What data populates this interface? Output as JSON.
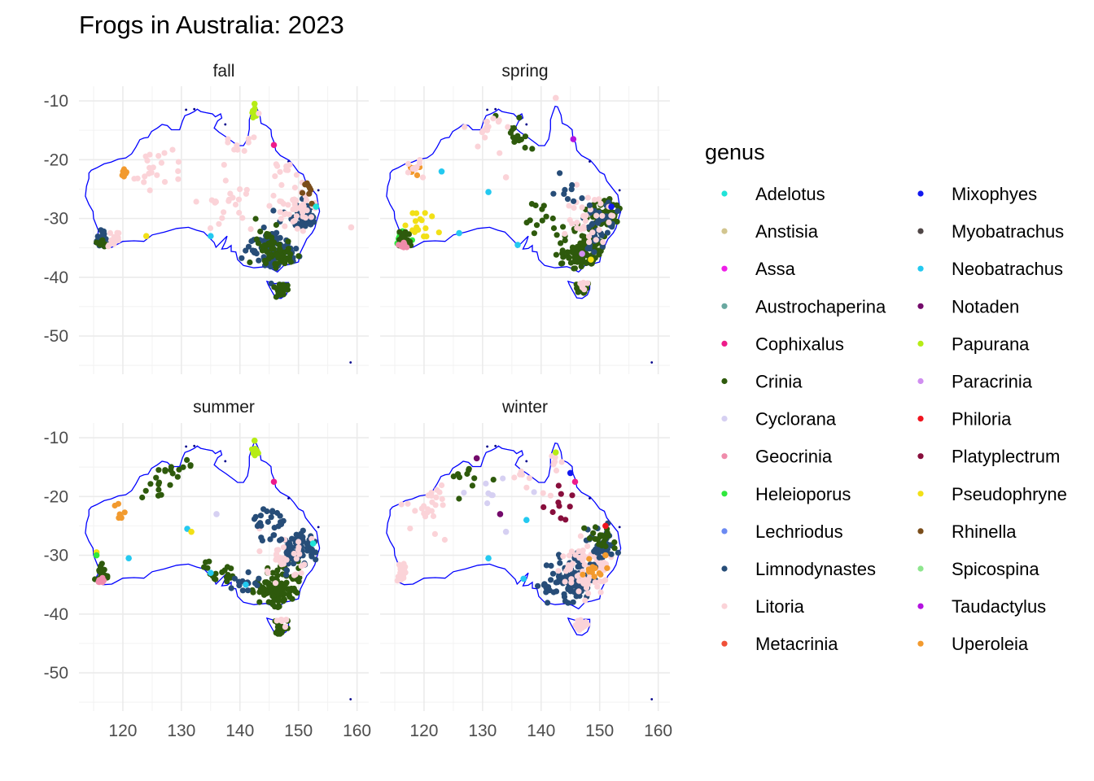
{
  "chart_data": {
    "type": "scatter",
    "title": "Frogs in Australia: 2023",
    "xlabel": "",
    "ylabel": "",
    "xlim": [
      112.5,
      162
    ],
    "ylim": [
      -56.5,
      -7.5
    ],
    "x_ticks": [
      120,
      130,
      140,
      150,
      160
    ],
    "y_ticks": [
      -10,
      -20,
      -30,
      -40,
      -50
    ],
    "grid": true,
    "legend_title": "genus",
    "legend_position": "right",
    "facets": [
      "fall",
      "spring",
      "summer",
      "winter"
    ],
    "genera": [
      {
        "name": "Adelotus",
        "color": "#1fe3d8"
      },
      {
        "name": "Anstisia",
        "color": "#d2c58f"
      },
      {
        "name": "Assa",
        "color": "#ee1ee8"
      },
      {
        "name": "Austrochaperina",
        "color": "#69a8a0"
      },
      {
        "name": "Cophixalus",
        "color": "#ee1b8a"
      },
      {
        "name": "Crinia",
        "color": "#2e5a0c"
      },
      {
        "name": "Cyclorana",
        "color": "#d6d0f2"
      },
      {
        "name": "Geocrinia",
        "color": "#ef8cab"
      },
      {
        "name": "Heleioporus",
        "color": "#2fe83c"
      },
      {
        "name": "Lechriodus",
        "color": "#6b8af2"
      },
      {
        "name": "Limnodynastes",
        "color": "#274d78"
      },
      {
        "name": "Litoria",
        "color": "#fbd3d8"
      },
      {
        "name": "Metacrinia",
        "color": "#f05038"
      },
      {
        "name": "Mixophyes",
        "color": "#1218f0"
      },
      {
        "name": "Myobatrachus",
        "color": "#4f4646"
      },
      {
        "name": "Neobatrachus",
        "color": "#23c9f0"
      },
      {
        "name": "Notaden",
        "color": "#740a6b"
      },
      {
        "name": "Papurana",
        "color": "#b6ec15"
      },
      {
        "name": "Paracrinia",
        "color": "#d08ef0"
      },
      {
        "name": "Philoria",
        "color": "#f0141e"
      },
      {
        "name": "Platyplectrum",
        "color": "#880e3c"
      },
      {
        "name": "Pseudophryne",
        "color": "#f2e016"
      },
      {
        "name": "Rhinella",
        "color": "#7a4d1a"
      },
      {
        "name": "Spicospina",
        "color": "#8ee68e"
      },
      {
        "name": "Taudactylus",
        "color": "#b412e0"
      },
      {
        "name": "Uperoleia",
        "color": "#f29a2e"
      }
    ],
    "coastline_color": "#0000ff",
    "coastline": [
      [
        113.6,
        -26.2
      ],
      [
        113.8,
        -24.5
      ],
      [
        114.2,
        -23.2
      ],
      [
        114.2,
        -22.3
      ],
      [
        114.6,
        -21.8
      ],
      [
        115.5,
        -21.4
      ],
      [
        116.8,
        -20.7
      ],
      [
        118.0,
        -20.4
      ],
      [
        119.2,
        -19.9
      ],
      [
        120.5,
        -19.7
      ],
      [
        121.5,
        -19.0
      ],
      [
        122.2,
        -17.9
      ],
      [
        122.9,
        -16.6
      ],
      [
        123.6,
        -16.3
      ],
      [
        124.3,
        -16.2
      ],
      [
        124.9,
        -15.2
      ],
      [
        125.9,
        -14.6
      ],
      [
        126.7,
        -14.0
      ],
      [
        127.6,
        -14.2
      ],
      [
        128.3,
        -14.9
      ],
      [
        128.9,
        -14.9
      ],
      [
        129.7,
        -14.9
      ],
      [
        130.2,
        -13.4
      ],
      [
        130.6,
        -12.5
      ],
      [
        131.4,
        -12.2
      ],
      [
        132.2,
        -11.8
      ],
      [
        132.7,
        -11.4
      ],
      [
        133.3,
        -11.8
      ],
      [
        134.2,
        -12.0
      ],
      [
        135.3,
        -12.2
      ],
      [
        135.8,
        -12.7
      ],
      [
        136.7,
        -12.2
      ],
      [
        136.9,
        -12.9
      ],
      [
        136.2,
        -13.4
      ],
      [
        135.6,
        -14.6
      ],
      [
        136.4,
        -15.3
      ],
      [
        137.6,
        -16.1
      ],
      [
        139.1,
        -17.2
      ],
      [
        139.6,
        -17.6
      ],
      [
        140.6,
        -17.6
      ],
      [
        141.3,
        -16.5
      ],
      [
        141.6,
        -14.8
      ],
      [
        141.6,
        -13.2
      ],
      [
        141.9,
        -12.3
      ],
      [
        142.4,
        -10.9
      ],
      [
        142.8,
        -11.0
      ],
      [
        143.4,
        -12.4
      ],
      [
        143.6,
        -13.8
      ],
      [
        144.5,
        -14.2
      ],
      [
        145.3,
        -14.9
      ],
      [
        145.4,
        -16.0
      ],
      [
        145.9,
        -17.2
      ],
      [
        146.1,
        -18.4
      ],
      [
        146.9,
        -19.3
      ],
      [
        148.4,
        -20.1
      ],
      [
        149.2,
        -21.0
      ],
      [
        150.0,
        -22.1
      ],
      [
        150.8,
        -22.5
      ],
      [
        151.2,
        -23.6
      ],
      [
        152.6,
        -25.4
      ],
      [
        153.1,
        -26.0
      ],
      [
        153.4,
        -27.8
      ],
      [
        153.6,
        -28.8
      ],
      [
        153.1,
        -30.4
      ],
      [
        152.8,
        -31.6
      ],
      [
        152.3,
        -32.5
      ],
      [
        151.4,
        -33.5
      ],
      [
        151.0,
        -34.4
      ],
      [
        150.3,
        -35.8
      ],
      [
        150.0,
        -37.4
      ],
      [
        148.6,
        -37.8
      ],
      [
        147.5,
        -38.0
      ],
      [
        146.4,
        -39.1
      ],
      [
        145.3,
        -38.5
      ],
      [
        144.4,
        -38.2
      ],
      [
        142.4,
        -38.4
      ],
      [
        140.6,
        -38.0
      ],
      [
        139.6,
        -37.0
      ],
      [
        139.3,
        -35.7
      ],
      [
        138.5,
        -35.6
      ],
      [
        138.5,
        -34.6
      ],
      [
        137.8,
        -35.1
      ],
      [
        136.9,
        -35.2
      ],
      [
        137.5,
        -34.0
      ],
      [
        137.8,
        -33.0
      ],
      [
        137.2,
        -33.6
      ],
      [
        135.9,
        -34.9
      ],
      [
        135.6,
        -34.1
      ],
      [
        134.6,
        -33.1
      ],
      [
        133.8,
        -32.3
      ],
      [
        132.6,
        -32.0
      ],
      [
        131.2,
        -31.5
      ],
      [
        129.2,
        -31.7
      ],
      [
        127.1,
        -32.3
      ],
      [
        125.0,
        -32.8
      ],
      [
        123.6,
        -33.9
      ],
      [
        121.9,
        -33.8
      ],
      [
        120.0,
        -33.9
      ],
      [
        118.1,
        -34.9
      ],
      [
        116.6,
        -35.0
      ],
      [
        115.1,
        -34.3
      ],
      [
        115.7,
        -33.3
      ],
      [
        115.8,
        -32.0
      ],
      [
        115.0,
        -30.0
      ],
      [
        114.9,
        -28.8
      ],
      [
        114.2,
        -27.6
      ],
      [
        113.6,
        -26.2
      ]
    ],
    "tasmania": [
      [
        144.6,
        -40.7
      ],
      [
        146.0,
        -41.1
      ],
      [
        147.2,
        -40.9
      ],
      [
        148.3,
        -40.9
      ],
      [
        148.3,
        -42.0
      ],
      [
        147.9,
        -43.0
      ],
      [
        147.0,
        -43.6
      ],
      [
        146.1,
        -43.5
      ],
      [
        145.4,
        -42.3
      ],
      [
        144.8,
        -41.2
      ],
      [
        144.6,
        -40.7
      ]
    ],
    "islands": [
      [
        158.9,
        -54.5
      ],
      [
        132.2,
        -11.4
      ],
      [
        130.8,
        -11.5
      ],
      [
        137.5,
        -14.0
      ],
      [
        148.3,
        -20.3
      ],
      [
        153.4,
        -25.2
      ]
    ]
  }
}
